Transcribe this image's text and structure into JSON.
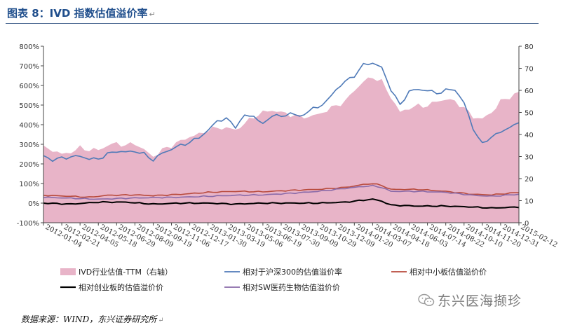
{
  "header": {
    "title": "图表 8：IVD 指数估值溢价率",
    "return_mark": "↵"
  },
  "source": {
    "text": "数据来源：WIND，东兴证券研究所",
    "return_mark": "↵"
  },
  "watermark": {
    "text": "东兴医海撷珍",
    "icon": "wechat-icon"
  },
  "chart_data": {
    "type": "area",
    "x_tick_labels": [
      "2012-01-04",
      "2012-02-21",
      "2012-04-05",
      "2012-05-18",
      "2012-06-29",
      "2012-08-09",
      "2012-09-19",
      "2012-11-06",
      "2012-12-17",
      "2013-01-30",
      "2013-03-19",
      "2013-05-06",
      "2013-06-19",
      "2013-07-30",
      "2013-09-09",
      "2013-10-29",
      "2013-12-09",
      "2014-01-20",
      "2014-03-07",
      "2014-04-18",
      "2014-06-03",
      "2014-07-14",
      "2014-08-22",
      "2014-10-10",
      "2014-11-20",
      "2014-12-31",
      "2015-02-12"
    ],
    "y_left": {
      "ticks": [
        "-100%",
        "0%",
        "100%",
        "200%",
        "300%",
        "400%",
        "500%",
        "600%",
        "700%",
        "800%"
      ],
      "lim": [
        -100,
        800
      ]
    },
    "y_right": {
      "ticks": [
        "0",
        "10",
        "20",
        "30",
        "40",
        "50",
        "60",
        "70",
        "80"
      ],
      "lim": [
        0,
        80
      ]
    },
    "grid": false,
    "legend_position": "bottom",
    "series": [
      {
        "name": "IVD行业估值-TTM（右轴）",
        "kind": "area",
        "axis": "right",
        "color": "#e8b4c8",
        "points": [
          [
            0,
            34
          ],
          [
            2,
            33
          ],
          [
            4,
            31
          ],
          [
            6,
            32
          ],
          [
            8,
            34
          ],
          [
            10,
            33
          ],
          [
            12,
            33
          ],
          [
            14,
            35
          ],
          [
            16,
            36
          ],
          [
            18,
            35
          ],
          [
            20,
            36
          ],
          [
            22,
            33
          ],
          [
            24,
            30
          ],
          [
            26,
            33
          ],
          [
            28,
            35
          ],
          [
            30,
            37
          ],
          [
            32,
            39
          ],
          [
            34,
            40
          ],
          [
            36,
            42
          ],
          [
            38,
            43
          ],
          [
            40,
            43
          ],
          [
            42,
            42
          ],
          [
            44,
            45
          ],
          [
            46,
            48
          ],
          [
            48,
            50
          ],
          [
            50,
            51
          ],
          [
            52,
            50
          ],
          [
            54,
            49
          ],
          [
            56,
            48
          ],
          [
            58,
            48
          ],
          [
            60,
            49
          ],
          [
            62,
            51
          ],
          [
            64,
            53
          ],
          [
            66,
            55
          ],
          [
            68,
            60
          ],
          [
            70,
            64
          ],
          [
            72,
            66
          ],
          [
            74,
            64
          ],
          [
            76,
            57
          ],
          [
            78,
            50
          ],
          [
            80,
            52
          ],
          [
            82,
            53
          ],
          [
            84,
            53
          ],
          [
            86,
            55
          ],
          [
            88,
            56
          ],
          [
            90,
            55
          ],
          [
            92,
            52
          ],
          [
            94,
            48
          ],
          [
            96,
            47
          ],
          [
            98,
            50
          ],
          [
            100,
            55
          ],
          [
            102,
            57
          ],
          [
            104,
            59
          ]
        ]
      },
      {
        "name": "相对于沪深300的估值溢价率",
        "kind": "line",
        "axis": "left",
        "color": "#4f7ab8",
        "points": [
          [
            0,
            240
          ],
          [
            2,
            220
          ],
          [
            4,
            230
          ],
          [
            6,
            235
          ],
          [
            8,
            240
          ],
          [
            10,
            225
          ],
          [
            12,
            225
          ],
          [
            14,
            250
          ],
          [
            16,
            265
          ],
          [
            18,
            260
          ],
          [
            20,
            265
          ],
          [
            22,
            250
          ],
          [
            24,
            220
          ],
          [
            26,
            255
          ],
          [
            28,
            275
          ],
          [
            30,
            295
          ],
          [
            32,
            310
          ],
          [
            34,
            335
          ],
          [
            36,
            370
          ],
          [
            38,
            420
          ],
          [
            40,
            430
          ],
          [
            42,
            390
          ],
          [
            44,
            445
          ],
          [
            46,
            445
          ],
          [
            48,
            400
          ],
          [
            50,
            450
          ],
          [
            52,
            440
          ],
          [
            54,
            460
          ],
          [
            56,
            440
          ],
          [
            58,
            470
          ],
          [
            60,
            490
          ],
          [
            62,
            520
          ],
          [
            64,
            580
          ],
          [
            66,
            620
          ],
          [
            68,
            650
          ],
          [
            70,
            705
          ],
          [
            72,
            715
          ],
          [
            74,
            690
          ],
          [
            76,
            580
          ],
          [
            78,
            500
          ],
          [
            80,
            570
          ],
          [
            82,
            580
          ],
          [
            84,
            575
          ],
          [
            86,
            560
          ],
          [
            88,
            575
          ],
          [
            90,
            580
          ],
          [
            92,
            510
          ],
          [
            94,
            380
          ],
          [
            96,
            300
          ],
          [
            98,
            340
          ],
          [
            100,
            360
          ],
          [
            102,
            390
          ],
          [
            104,
            405
          ]
        ]
      },
      {
        "name": "相对中小板估值溢价价",
        "kind": "line",
        "axis": "left",
        "color": "#b84a3c",
        "points": [
          [
            0,
            40
          ],
          [
            6,
            35
          ],
          [
            10,
            30
          ],
          [
            14,
            40
          ],
          [
            20,
            42
          ],
          [
            24,
            38
          ],
          [
            30,
            45
          ],
          [
            36,
            55
          ],
          [
            42,
            60
          ],
          [
            48,
            58
          ],
          [
            54,
            65
          ],
          [
            60,
            70
          ],
          [
            66,
            80
          ],
          [
            70,
            95
          ],
          [
            72,
            100
          ],
          [
            74,
            90
          ],
          [
            76,
            70
          ],
          [
            82,
            70
          ],
          [
            88,
            60
          ],
          [
            94,
            45
          ],
          [
            98,
            42
          ],
          [
            104,
            55
          ]
        ]
      },
      {
        "name": "相对创业板的估值溢价价",
        "kind": "line",
        "axis": "left",
        "color": "#000000",
        "points": [
          [
            0,
            0
          ],
          [
            6,
            -5
          ],
          [
            12,
            5
          ],
          [
            18,
            5
          ],
          [
            24,
            -5
          ],
          [
            30,
            0
          ],
          [
            36,
            0
          ],
          [
            42,
            -5
          ],
          [
            48,
            0
          ],
          [
            54,
            0
          ],
          [
            60,
            0
          ],
          [
            66,
            5
          ],
          [
            70,
            15
          ],
          [
            72,
            20
          ],
          [
            74,
            10
          ],
          [
            76,
            -10
          ],
          [
            82,
            -15
          ],
          [
            88,
            -15
          ],
          [
            94,
            -20
          ],
          [
            98,
            -25
          ],
          [
            104,
            -20
          ]
        ]
      },
      {
        "name": "相对SW医药生物估值溢价价",
        "kind": "line",
        "axis": "left",
        "color": "#8a6aa8",
        "points": [
          [
            0,
            30
          ],
          [
            6,
            25
          ],
          [
            12,
            20
          ],
          [
            18,
            25
          ],
          [
            24,
            28
          ],
          [
            30,
            30
          ],
          [
            36,
            35
          ],
          [
            42,
            40
          ],
          [
            48,
            42
          ],
          [
            54,
            50
          ],
          [
            60,
            60
          ],
          [
            66,
            75
          ],
          [
            70,
            85
          ],
          [
            72,
            88
          ],
          [
            74,
            80
          ],
          [
            76,
            60
          ],
          [
            82,
            60
          ],
          [
            88,
            55
          ],
          [
            94,
            40
          ],
          [
            98,
            35
          ],
          [
            104,
            45
          ]
        ]
      }
    ],
    "n_points": 105
  }
}
